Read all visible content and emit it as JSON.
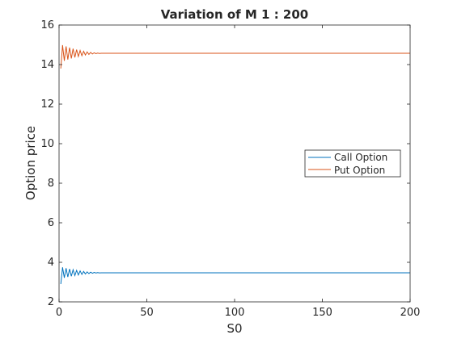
{
  "chart_data": {
    "type": "line",
    "title": "Variation of M 1 : 200",
    "xlabel": "S0",
    "ylabel": "Option price",
    "xlim": [
      0,
      200
    ],
    "ylim": [
      2,
      16
    ],
    "xticks": [
      0,
      50,
      100,
      150,
      200
    ],
    "yticks": [
      2,
      4,
      6,
      8,
      10,
      12,
      14,
      16
    ],
    "legend_position": "center-right",
    "series": [
      {
        "name": "Call Option",
        "color": "#0072BD",
        "start_value": 2.9,
        "converged_value": 3.47,
        "oscillation_amplitude": 0.3,
        "oscillation_decay_until": 25
      },
      {
        "name": "Put Option",
        "color": "#D95319",
        "start_value": 13.8,
        "converged_value": 14.57,
        "oscillation_amplitude": 0.45,
        "oscillation_decay_until": 25
      }
    ],
    "x_range": [
      1,
      200
    ]
  }
}
